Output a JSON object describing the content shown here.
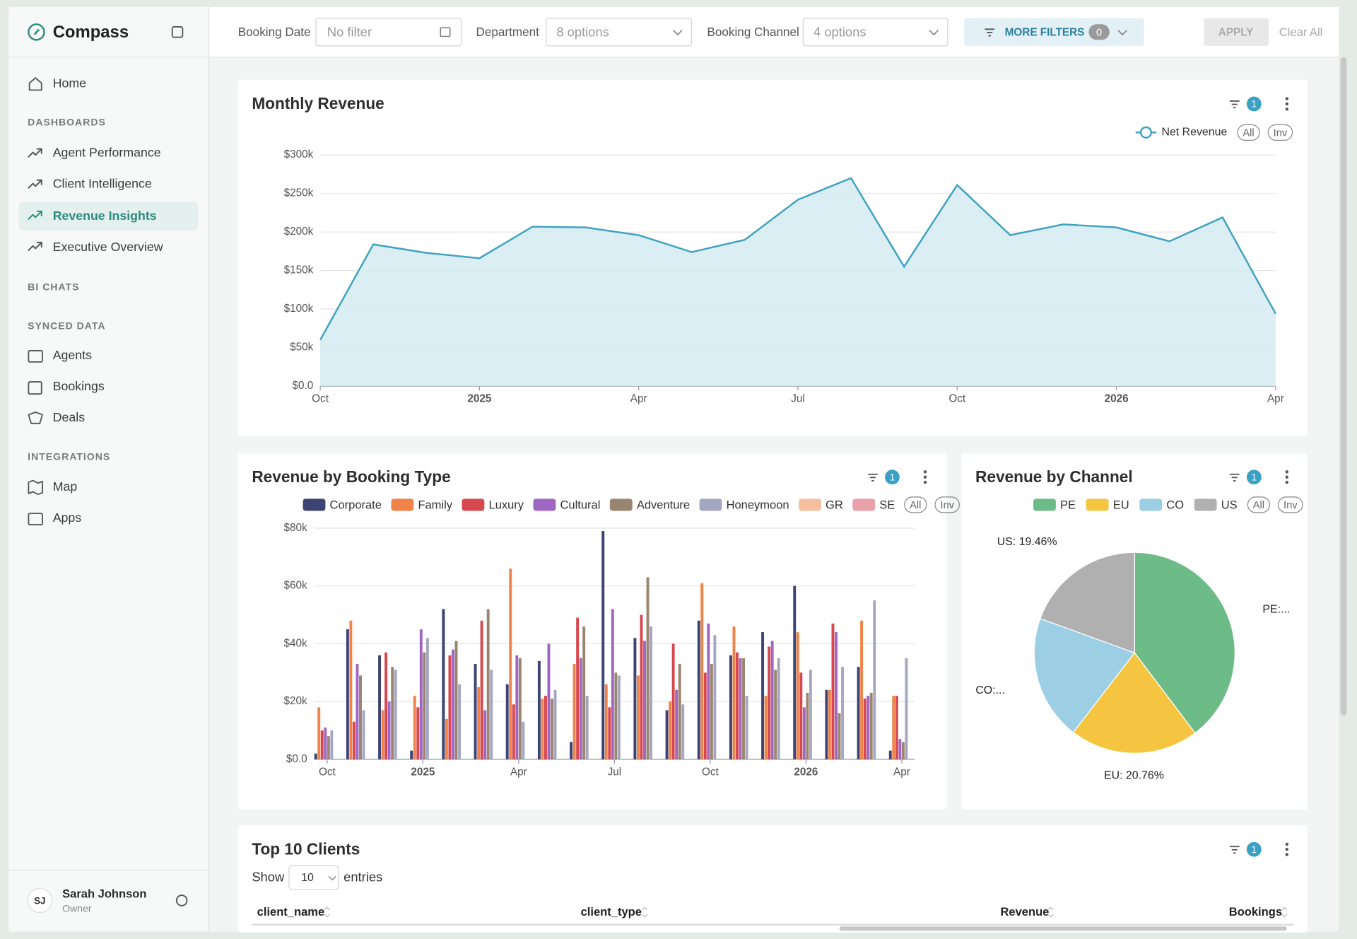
{
  "app": {
    "brand": "Compass",
    "home": "Home",
    "dashboards": {
      "title": "DASHBOARDS",
      "items": [
        "Agent Performance",
        "Client Intelligence",
        "Revenue Insights",
        "Executive Overview"
      ]
    },
    "bi_chats": {
      "title": "BI CHATS"
    },
    "synced_data": {
      "title": "SYNCED DATA",
      "items": [
        "Agents",
        "Bookings",
        "Deals"
      ]
    },
    "integrations": {
      "title": "INTEGRATIONS",
      "items": [
        "Map",
        "Apps"
      ]
    },
    "user": {
      "initials": "SJ",
      "name": "Sarah Johnson",
      "role": "Owner"
    }
  },
  "filters": {
    "items": [
      {
        "label": "Booking Date",
        "value": "No filter"
      },
      {
        "label": "Department",
        "value": "8 options"
      },
      {
        "label": "Booking Channel",
        "value": "4 options"
      }
    ],
    "more": {
      "label": "MORE FILTERS",
      "count": 0
    },
    "apply": "APPLY",
    "clear": "Clear All"
  },
  "chart_data": [
    {
      "type": "line",
      "title": "Monthly Revenue",
      "filter_count": 1,
      "legend_buttons": [
        "All",
        "Inv"
      ],
      "categories": [
        "Oct",
        null,
        null,
        "2025",
        null,
        null,
        "Apr",
        null,
        null,
        "Jul",
        null,
        null,
        "Oct",
        null,
        null,
        "2026",
        null,
        null,
        "Apr"
      ],
      "series": [
        {
          "name": "Net Revenue",
          "color": "#3ea2c1",
          "fill": "#d3ebf2",
          "values": [
            60000,
            184000,
            173000,
            166000,
            207000,
            206000,
            196000,
            174000,
            190000,
            242000,
            270000,
            155000,
            261000,
            196000,
            210000,
            206000,
            188000,
            219000,
            94000
          ]
        }
      ],
      "ylim": [
        0,
        300000
      ],
      "yticks": [
        {
          "value": 0,
          "label": "$0.0"
        },
        {
          "value": 50000,
          "label": "$50k"
        },
        {
          "value": 100000,
          "label": "$100k"
        },
        {
          "value": 150000,
          "label": "$150k"
        },
        {
          "value": 200000,
          "label": "$200k"
        },
        {
          "value": 250000,
          "label": "$250k"
        },
        {
          "value": 300000,
          "label": "$300k"
        }
      ],
      "grid": true
    },
    {
      "type": "bar",
      "title": "Revenue by Booking Type",
      "filter_count": 1,
      "legend_buttons": [
        "All",
        "Inv"
      ],
      "categories": [
        "Oct",
        null,
        null,
        "2025",
        null,
        null,
        "Apr",
        null,
        null,
        "Jul",
        null,
        null,
        "Oct",
        null,
        null,
        "2026",
        null,
        null,
        "Apr"
      ],
      "series": [
        {
          "name": "Corporate",
          "color": "#3d4373",
          "values": [
            2000,
            45000,
            36000,
            3000,
            52000,
            33000,
            26000,
            34000,
            6000,
            79000,
            42000,
            17000,
            48000,
            36000,
            44000,
            60000,
            24000,
            32000,
            3000
          ]
        },
        {
          "name": "Family",
          "color": "#f0834a",
          "values": [
            18000,
            48000,
            17000,
            22000,
            14000,
            25000,
            66000,
            21000,
            33000,
            26000,
            29000,
            20000,
            61000,
            46000,
            22000,
            44000,
            24000,
            48000,
            22000
          ]
        },
        {
          "name": "Luxury",
          "color": "#d6484f",
          "values": [
            10000,
            13000,
            37000,
            18000,
            36000,
            48000,
            19000,
            22000,
            49000,
            18000,
            50000,
            40000,
            30000,
            37000,
            39000,
            30000,
            47000,
            21000,
            22000
          ]
        },
        {
          "name": "Cultural",
          "color": "#a066c4",
          "values": [
            11000,
            33000,
            20000,
            45000,
            38000,
            17000,
            36000,
            40000,
            35000,
            52000,
            41000,
            24000,
            47000,
            35000,
            41000,
            18000,
            44000,
            22000,
            7000
          ]
        },
        {
          "name": "Adventure",
          "color": "#9a8670",
          "values": [
            8000,
            29000,
            32000,
            37000,
            41000,
            52000,
            35000,
            21000,
            46000,
            30000,
            63000,
            33000,
            33000,
            35000,
            31000,
            23000,
            16000,
            23000,
            6000
          ]
        },
        {
          "name": "Honeymoon",
          "color": "#a5a7c2",
          "values": [
            10000,
            17000,
            31000,
            42000,
            26000,
            31000,
            13000,
            24000,
            22000,
            29000,
            46000,
            19000,
            43000,
            22000,
            35000,
            31000,
            32000,
            55000,
            35000
          ]
        },
        {
          "name": "GR",
          "color": "#f7bfa0",
          "values": [
            0,
            0,
            0,
            0,
            0,
            0,
            0,
            0,
            0,
            0,
            0,
            0,
            0,
            0,
            0,
            0,
            0,
            0,
            0
          ]
        },
        {
          "name": "SE",
          "color": "#e9a0a8",
          "values": [
            0,
            0,
            0,
            0,
            0,
            0,
            0,
            0,
            0,
            0,
            0,
            0,
            0,
            0,
            0,
            0,
            0,
            0,
            0
          ]
        }
      ],
      "ylim": [
        0,
        80000
      ],
      "yticks": [
        {
          "value": 0,
          "label": "$0.0"
        },
        {
          "value": 20000,
          "label": "$20k"
        },
        {
          "value": 40000,
          "label": "$40k"
        },
        {
          "value": 60000,
          "label": "$60k"
        },
        {
          "value": 80000,
          "label": "$80k"
        }
      ],
      "grid": true
    },
    {
      "type": "pie",
      "title": "Revenue by Channel",
      "filter_count": 1,
      "legend_buttons": [
        "All",
        "Inv"
      ],
      "categories": [
        "PE",
        "EU",
        "CO",
        "US"
      ],
      "colors": [
        "#6dbb87",
        "#f5c542",
        "#9ccfe3",
        "#b0b0b0"
      ],
      "values": [
        39.7,
        20.76,
        20.08,
        19.46
      ],
      "value_labels": [
        "PE:...",
        "EU: 20.76%",
        "CO:...",
        "US: 19.46%"
      ]
    }
  ],
  "table": {
    "title": "Top 10 Clients",
    "filter_count": 1,
    "show": "Show",
    "page_size": 10,
    "entries": "entries",
    "columns": [
      "client_name",
      "client_type",
      "Revenue",
      "Bookings"
    ]
  }
}
